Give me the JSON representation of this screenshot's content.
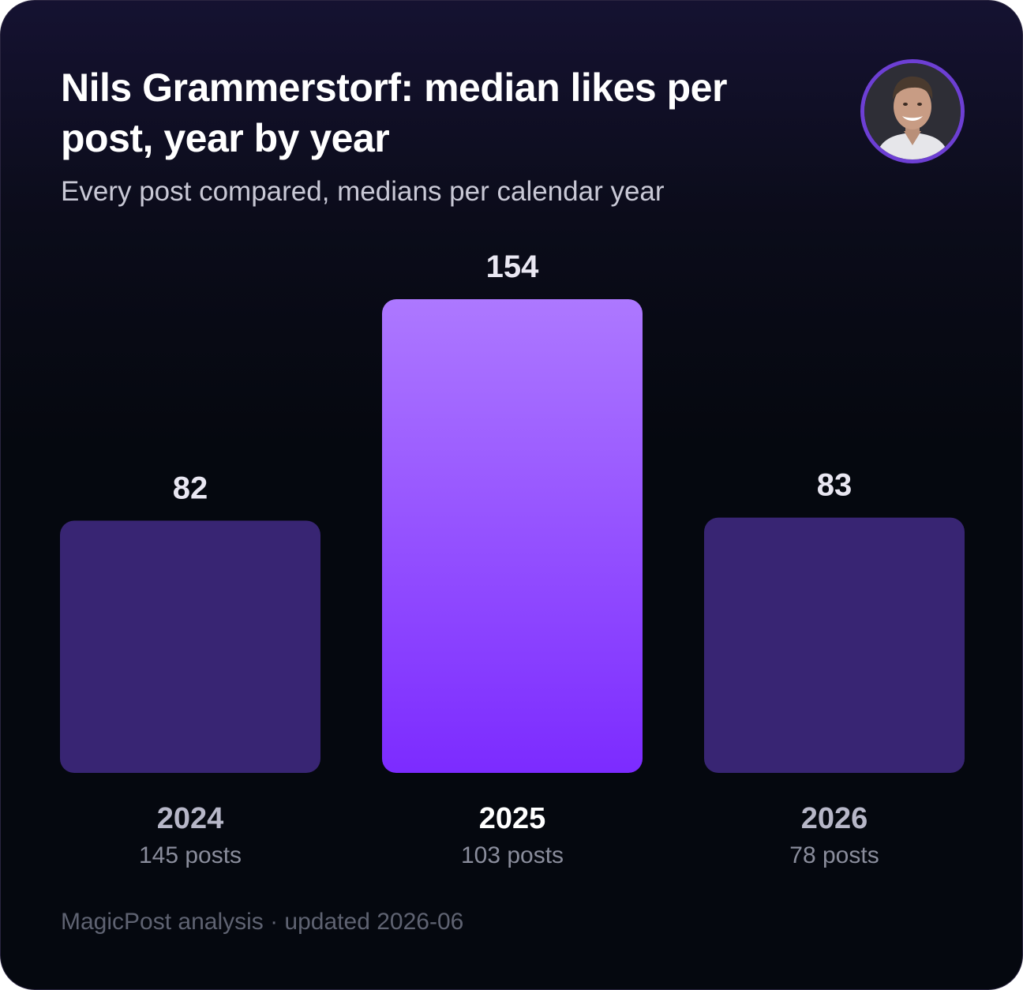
{
  "header": {
    "title": "Nils Grammerstorf: median likes per post, year by year",
    "subtitle": "Every post compared, medians per calendar year",
    "avatar_icon": "profile-photo"
  },
  "footer": {
    "text": "MagicPost analysis · updated 2026-06"
  },
  "colors": {
    "bar_default": "#382573",
    "bar_highlight_top": "#ad78ff",
    "bar_highlight_bottom": "#7c2bff",
    "value_label": "#e9e7f2",
    "year_label": "#b7b7c8",
    "year_label_highlight": "#ffffff",
    "posts_label": "#8a8d9c",
    "avatar_ring": "#6d3fd4"
  },
  "chart_data": {
    "type": "bar",
    "title": "Nils Grammerstorf: median likes per post, year by year",
    "subtitle": "Every post compared, medians per calendar year",
    "categories": [
      "2024",
      "2025",
      "2026"
    ],
    "values": [
      82,
      154,
      83
    ],
    "value_labels": [
      "82",
      "154",
      "83"
    ],
    "sublabels": [
      "145 posts",
      "103 posts",
      "78 posts"
    ],
    "highlight": "2025",
    "ylim": [
      0,
      154
    ],
    "xlabel": "",
    "ylabel": "",
    "grid": false
  }
}
